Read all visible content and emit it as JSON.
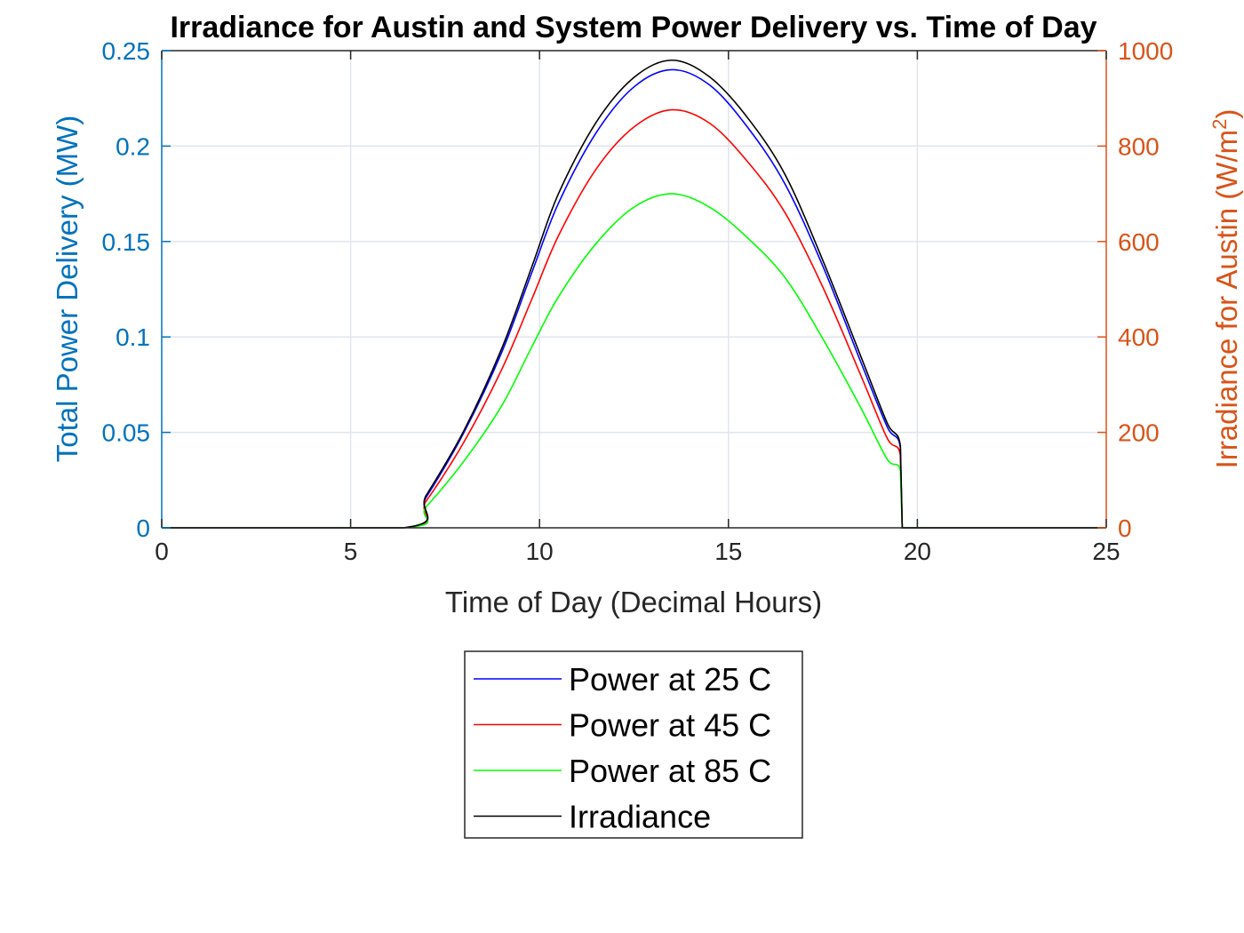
{
  "chart_data": {
    "type": "line",
    "title": "Irradiance for Austin and System Power Delivery vs. Time of Day",
    "xlabel": "Time of Day (Decimal Hours)",
    "ylabel_left": "Total Power Delivery (MW)",
    "ylabel_right": "Irradiance for Austin (W/m",
    "ylabel_right_sup": "2",
    "ylabel_right_close": ")",
    "xlim": [
      0,
      25
    ],
    "ylim_left": [
      0,
      0.25
    ],
    "ylim_right": [
      0,
      1000
    ],
    "x_ticks": [
      0,
      5,
      10,
      15,
      20,
      25
    ],
    "x_tick_labels": [
      "0",
      "5",
      "10",
      "15",
      "20",
      "25"
    ],
    "y_left_ticks": [
      0,
      0.05,
      0.1,
      0.15,
      0.2,
      0.25
    ],
    "y_left_tick_labels": [
      "0",
      "0.05",
      "0.1",
      "0.15",
      "0.2",
      "0.25"
    ],
    "y_right_ticks": [
      0,
      200,
      400,
      600,
      800,
      1000
    ],
    "y_right_tick_labels": [
      "0",
      "200",
      "400",
      "600",
      "800",
      "1000"
    ],
    "grid": true,
    "legend_position": "below",
    "colors": {
      "left_axis": "#0072BD",
      "right_axis": "#D95319",
      "grid": "#dfe5ec"
    },
    "series": [
      {
        "name": "Power at 25 C",
        "axis": "left",
        "color": "#0000ff",
        "x": [
          0,
          6.4,
          7,
          8,
          9,
          9.8,
          10.5,
          11.5,
          12.5,
          13.5,
          14.5,
          15.5,
          16.5,
          17.5,
          18.5,
          19.2,
          19.55,
          19.6,
          25
        ],
        "y": [
          0,
          0,
          0.016,
          0.05,
          0.092,
          0.134,
          0.17,
          0.207,
          0.231,
          0.24,
          0.232,
          0.21,
          0.18,
          0.137,
          0.087,
          0.053,
          0.042,
          0,
          0
        ]
      },
      {
        "name": "Power at 45 C",
        "axis": "left",
        "color": "#ff0000",
        "x": [
          0,
          6.4,
          7,
          8,
          9,
          9.8,
          10.5,
          11.5,
          12.5,
          13.5,
          14.5,
          15.5,
          16.5,
          17.5,
          18.5,
          19.2,
          19.55,
          19.6,
          25
        ],
        "y": [
          0,
          0,
          0.014,
          0.045,
          0.083,
          0.12,
          0.153,
          0.188,
          0.21,
          0.219,
          0.212,
          0.192,
          0.165,
          0.126,
          0.08,
          0.047,
          0.038,
          0,
          0
        ]
      },
      {
        "name": "Power at 85 C",
        "axis": "left",
        "color": "#00ff00",
        "x": [
          0,
          6.4,
          7,
          8,
          9,
          9.8,
          10.5,
          11.5,
          12.5,
          13.5,
          14.5,
          15.5,
          16.5,
          17.5,
          18.5,
          19.2,
          19.55,
          19.6,
          25
        ],
        "y": [
          0,
          0,
          0.011,
          0.035,
          0.064,
          0.095,
          0.121,
          0.149,
          0.168,
          0.175,
          0.168,
          0.152,
          0.131,
          0.099,
          0.063,
          0.036,
          0.03,
          0,
          0
        ]
      },
      {
        "name": "Irradiance",
        "axis": "right",
        "color": "#000000",
        "x": [
          0,
          6.4,
          7,
          8,
          9,
          9.8,
          10.5,
          11.5,
          12.5,
          13.5,
          14.5,
          15.5,
          16.5,
          17.5,
          18.5,
          19.2,
          19.55,
          19.6,
          25
        ],
        "y": [
          0,
          0,
          68,
          204,
          376,
          548,
          700,
          850,
          944,
          980,
          945,
          860,
          740,
          560,
          360,
          220,
          172,
          0,
          0
        ]
      }
    ]
  }
}
